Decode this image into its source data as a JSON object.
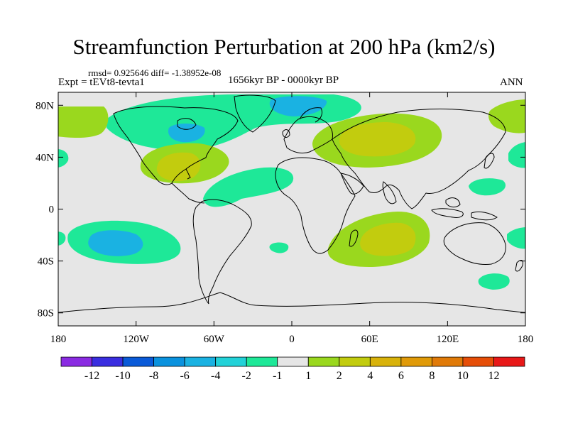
{
  "title": "Streamfunction Perturbation at 200 hPa (km2/s)",
  "stats_line": "rmsd= 0.925646 diff= -1.38952e-08",
  "experiment": "Expt = tEVt8-tevta1",
  "period": "1656kyr BP - 0000kyr BP",
  "season": "ANN",
  "map": {
    "projection": "cylindrical-equidistant",
    "lon_range": [
      -180,
      180
    ],
    "lat_range": [
      -90,
      90
    ],
    "lon_ticks": [
      {
        "value": -180,
        "label": "180"
      },
      {
        "value": -120,
        "label": "120W"
      },
      {
        "value": -60,
        "label": "60W"
      },
      {
        "value": 0,
        "label": "0"
      },
      {
        "value": 60,
        "label": "60E"
      },
      {
        "value": 120,
        "label": "120E"
      },
      {
        "value": 180,
        "label": "180"
      }
    ],
    "lat_ticks": [
      {
        "value": 80,
        "label": "80N"
      },
      {
        "value": 40,
        "label": "40N"
      },
      {
        "value": 0,
        "label": "0"
      },
      {
        "value": -40,
        "label": "40S"
      },
      {
        "value": -80,
        "label": "80S"
      }
    ]
  },
  "colorbar": {
    "colors": [
      "#8a2be2",
      "#3a2ee0",
      "#0a5ad8",
      "#0a92de",
      "#1ab2e2",
      "#22d2d8",
      "#1ee898",
      "#e6e6e6",
      "#9ad81e",
      "#c2cc0e",
      "#d8b20a",
      "#e09a08",
      "#e07a08",
      "#e64e08",
      "#e81818"
    ],
    "labels": [
      "-12",
      "-10",
      "-8",
      "-6",
      "-4",
      "-2",
      "-1",
      "1",
      "2",
      "4",
      "6",
      "8",
      "10",
      "12"
    ]
  },
  "contour_regions": [
    {
      "name": "north-atlantic-arctic-low",
      "level": -2,
      "color": "#1ee898"
    },
    {
      "name": "north-america-core-low",
      "level": -4,
      "color": "#1ab2e2"
    },
    {
      "name": "arctic-greenland-core-low",
      "level": -4,
      "color": "#1ab2e2"
    },
    {
      "name": "central-asia-high",
      "level": 2,
      "color": "#9ad81e"
    },
    {
      "name": "central-asia-core-high",
      "level": 4,
      "color": "#c2cc0e"
    },
    {
      "name": "gulf-of-mexico-high",
      "level": 2,
      "color": "#9ad81e"
    },
    {
      "name": "gulf-of-mexico-core-high",
      "level": 4,
      "color": "#c2cc0e"
    },
    {
      "name": "tropical-atlantic-low",
      "level": -2,
      "color": "#1ee898"
    },
    {
      "name": "south-pacific-low",
      "level": -2,
      "color": "#1ee898"
    },
    {
      "name": "south-pacific-core-low",
      "level": -4,
      "color": "#1ab2e2"
    },
    {
      "name": "south-indian-ocean-high",
      "level": 2,
      "color": "#9ad81e"
    },
    {
      "name": "south-indian-ocean-core-high",
      "level": 4,
      "color": "#c2cc0e"
    },
    {
      "name": "north-pacific-west-high",
      "level": 2,
      "color": "#9ad81e"
    },
    {
      "name": "north-pacific-east-high",
      "level": 2,
      "color": "#9ad81e"
    },
    {
      "name": "north-pacific-low",
      "level": -2,
      "color": "#1ee898"
    },
    {
      "name": "western-pacific-low",
      "level": -2,
      "color": "#1ee898"
    },
    {
      "name": "southern-ocean-low",
      "level": -2,
      "color": "#1ee898"
    },
    {
      "name": "south-atlantic-small-low",
      "level": -2,
      "color": "#1ee898"
    },
    {
      "name": "west-indian-ocean-small-low",
      "level": -2,
      "color": "#1ee898"
    }
  ]
}
